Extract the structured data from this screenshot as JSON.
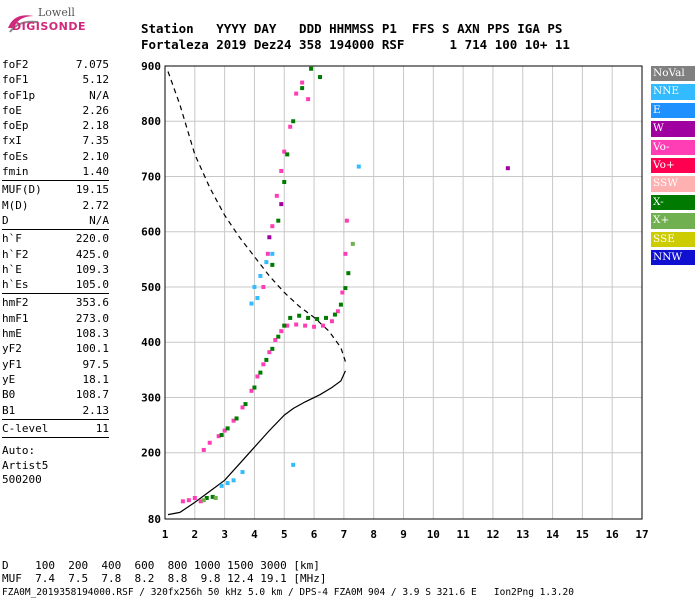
{
  "logo": {
    "top": "Lowell",
    "bottom": "DIGISONDE"
  },
  "header": {
    "line1": "Station   YYYY DAY   DDD HHMMSS P1  FFS S AXN PPS IGA PS",
    "line2": "Fortaleza 2019 Dez24 358 194000 RSF      1 714 100 10+ 11"
  },
  "params": {
    "group1": [
      {
        "label": "foF2",
        "value": "7.075"
      },
      {
        "label": "foF1",
        "value": "5.12"
      },
      {
        "label": "foF1p",
        "value": "N/A"
      },
      {
        "label": "foE",
        "value": "2.26"
      },
      {
        "label": "foEp",
        "value": "2.18"
      },
      {
        "label": "fxI",
        "value": "7.35"
      },
      {
        "label": "foEs",
        "value": "2.10"
      },
      {
        "label": "fmin",
        "value": "1.40"
      }
    ],
    "group2": [
      {
        "label": "MUF(D)",
        "value": "19.15"
      },
      {
        "label": "M(D)",
        "value": "2.72"
      },
      {
        "label": "D",
        "value": "N/A"
      }
    ],
    "group3": [
      {
        "label": "h`F",
        "value": "220.0"
      },
      {
        "label": "h`F2",
        "value": "425.0"
      },
      {
        "label": "h`E",
        "value": "109.3"
      },
      {
        "label": "h`Es",
        "value": "105.0"
      }
    ],
    "group4": [
      {
        "label": "hmF2",
        "value": "353.6"
      },
      {
        "label": "hmF1",
        "value": "273.0"
      },
      {
        "label": "hmE",
        "value": "108.3"
      },
      {
        "label": "yF2",
        "value": "100.1"
      },
      {
        "label": "yF1",
        "value": "97.5"
      },
      {
        "label": "yE",
        "value": "18.1"
      },
      {
        "label": "B0",
        "value": "108.7"
      },
      {
        "label": "B1",
        "value": "2.13"
      }
    ],
    "group5": [
      {
        "label": "C-level",
        "value": "11"
      }
    ]
  },
  "autoscale": {
    "line1": "Auto:",
    "line2": "Artist5",
    "line3": "500200"
  },
  "legend": [
    {
      "label": "NoVal",
      "color": "#808080"
    },
    {
      "label": "NNE",
      "color": "#33bbff"
    },
    {
      "label": "E",
      "color": "#1e90ff"
    },
    {
      "label": "W",
      "color": "#a000a0"
    },
    {
      "label": "Vo-",
      "color": "#ff3db5"
    },
    {
      "label": "Vo+",
      "color": "#ff0050"
    },
    {
      "label": "SSW",
      "color": "#ffb0b0"
    },
    {
      "label": "X-",
      "color": "#007a00"
    },
    {
      "label": "X+",
      "color": "#70b050"
    },
    {
      "label": "SSE",
      "color": "#cccc00"
    },
    {
      "label": "NNW",
      "color": "#1010d0"
    }
  ],
  "muf_table": {
    "line1": "D    100  200  400  600  800 1000 1500 3000 [km]",
    "line2": "MUF  7.4  7.5  7.8  8.2  8.8  9.8 12.4 19.1 [MHz]"
  },
  "footer": "FZA0M_2019358194000.RSF / 320fx256h 50 kHz 5.0 km / DPS-4 FZA0M 904 / 3.9 S 321.6 E   Ion2Png 1.3.20",
  "chart_data": {
    "type": "scatter",
    "xlim": [
      1,
      17
    ],
    "ylim": [
      80,
      900
    ],
    "x_ticks": [
      1,
      2,
      3,
      4,
      5,
      6,
      7,
      8,
      9,
      10,
      11,
      12,
      13,
      14,
      15,
      16,
      17
    ],
    "y_ticks": [
      80,
      200,
      300,
      400,
      500,
      600,
      700,
      800,
      900
    ],
    "grid": true,
    "series": [
      {
        "name": "Vo-",
        "color": "#ff3db5",
        "points": [
          [
            1.6,
            112
          ],
          [
            1.8,
            114
          ],
          [
            2.0,
            118
          ],
          [
            2.2,
            112
          ],
          [
            2.3,
            205
          ],
          [
            2.5,
            218
          ],
          [
            2.8,
            230
          ],
          [
            3.0,
            240
          ],
          [
            3.3,
            258
          ],
          [
            3.6,
            282
          ],
          [
            3.9,
            312
          ],
          [
            4.1,
            338
          ],
          [
            4.3,
            360
          ],
          [
            4.5,
            382
          ],
          [
            4.7,
            404
          ],
          [
            4.9,
            420
          ],
          [
            5.1,
            430
          ],
          [
            5.4,
            432
          ],
          [
            5.7,
            430
          ],
          [
            6.0,
            428
          ],
          [
            6.3,
            430
          ],
          [
            6.6,
            438
          ],
          [
            6.8,
            456
          ],
          [
            6.95,
            490
          ],
          [
            7.05,
            560
          ],
          [
            7.1,
            620
          ],
          [
            4.3,
            500
          ],
          [
            4.45,
            560
          ],
          [
            4.6,
            610
          ],
          [
            4.75,
            665
          ],
          [
            4.9,
            710
          ],
          [
            5.0,
            745
          ],
          [
            5.2,
            790
          ],
          [
            5.4,
            850
          ],
          [
            5.6,
            870
          ],
          [
            5.8,
            840
          ]
        ]
      },
      {
        "name": "X-",
        "color": "#007a00",
        "points": [
          [
            2.4,
            118
          ],
          [
            2.6,
            120
          ],
          [
            2.9,
            232
          ],
          [
            3.1,
            244
          ],
          [
            3.4,
            262
          ],
          [
            3.7,
            288
          ],
          [
            4.0,
            318
          ],
          [
            4.2,
            345
          ],
          [
            4.4,
            368
          ],
          [
            4.6,
            388
          ],
          [
            4.8,
            410
          ],
          [
            5.0,
            430
          ],
          [
            5.2,
            444
          ],
          [
            5.5,
            448
          ],
          [
            5.8,
            444
          ],
          [
            6.1,
            442
          ],
          [
            6.4,
            444
          ],
          [
            6.7,
            450
          ],
          [
            6.9,
            468
          ],
          [
            7.05,
            498
          ],
          [
            7.15,
            525
          ],
          [
            4.6,
            540
          ],
          [
            4.8,
            620
          ],
          [
            5.0,
            690
          ],
          [
            5.1,
            740
          ],
          [
            5.3,
            800
          ],
          [
            5.6,
            860
          ],
          [
            5.9,
            895
          ],
          [
            6.2,
            880
          ]
        ]
      },
      {
        "name": "NNE",
        "color": "#33bbff",
        "points": [
          [
            2.9,
            140
          ],
          [
            3.1,
            145
          ],
          [
            3.3,
            150
          ],
          [
            3.6,
            165
          ],
          [
            4.0,
            500
          ],
          [
            4.2,
            520
          ],
          [
            4.4,
            545
          ],
          [
            4.6,
            560
          ],
          [
            3.9,
            470
          ],
          [
            4.1,
            480
          ],
          [
            5.3,
            178
          ],
          [
            7.5,
            718
          ]
        ]
      },
      {
        "name": "X+",
        "color": "#70b050",
        "points": [
          [
            2.3,
            114
          ],
          [
            2.7,
            118
          ],
          [
            7.3,
            578
          ]
        ]
      },
      {
        "name": "W",
        "color": "#a000a0",
        "points": [
          [
            4.5,
            590
          ],
          [
            4.9,
            650
          ],
          [
            12.5,
            715
          ]
        ]
      }
    ],
    "lines": [
      {
        "name": "dashed",
        "style": "dashed",
        "points": [
          [
            1.1,
            890
          ],
          [
            1.5,
            830
          ],
          [
            2.0,
            740
          ],
          [
            2.5,
            680
          ],
          [
            3.0,
            630
          ],
          [
            3.5,
            590
          ],
          [
            4.0,
            555
          ],
          [
            4.5,
            520
          ],
          [
            5.0,
            490
          ],
          [
            5.5,
            465
          ],
          [
            6.0,
            445
          ],
          [
            6.5,
            420
          ],
          [
            6.9,
            390
          ],
          [
            7.05,
            365
          ]
        ]
      },
      {
        "name": "solid",
        "style": "solid",
        "points": [
          [
            1.1,
            88
          ],
          [
            1.5,
            92
          ],
          [
            2.0,
            110
          ],
          [
            2.5,
            130
          ],
          [
            3.0,
            150
          ],
          [
            3.5,
            180
          ],
          [
            4.0,
            210
          ],
          [
            4.5,
            240
          ],
          [
            5.0,
            268
          ],
          [
            5.3,
            280
          ],
          [
            5.7,
            292
          ],
          [
            6.2,
            305
          ],
          [
            6.6,
            318
          ],
          [
            6.9,
            330
          ],
          [
            7.05,
            348
          ]
        ]
      }
    ]
  }
}
